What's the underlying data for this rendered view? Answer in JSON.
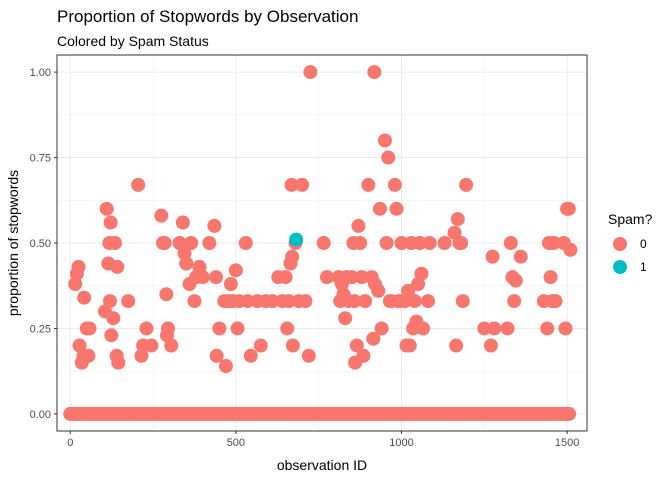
{
  "chart_data": {
    "type": "scatter",
    "title": "Proportion of Stopwords by Observation",
    "subtitle": "Colored by Spam Status",
    "xlabel": "observation ID",
    "ylabel": "proportion of stopwords",
    "xlim": [
      -40,
      1560
    ],
    "ylim": [
      -0.05,
      1.05
    ],
    "x_ticks": [
      0,
      500,
      1000,
      1500
    ],
    "y_ticks": [
      0.0,
      0.25,
      0.5,
      0.75,
      1.0
    ],
    "y_tick_labels": [
      "0.00",
      "0.25",
      "0.50",
      "0.75",
      "1.00"
    ],
    "grid": true,
    "legend": {
      "title": "Spam?",
      "position": "right",
      "entries": [
        {
          "label": "0",
          "color": "#F8766D"
        },
        {
          "label": "1",
          "color": "#00BFC4"
        }
      ]
    },
    "series": [
      {
        "name": "0",
        "color": "#F8766D",
        "zero_range": [
          0,
          1510,
          6
        ],
        "points": [
          [
            15,
            0.38
          ],
          [
            20,
            0.41
          ],
          [
            25,
            0.43
          ],
          [
            28,
            0.2
          ],
          [
            35,
            0.15
          ],
          [
            40,
            0.17
          ],
          [
            42,
            0.34
          ],
          [
            50,
            0.25
          ],
          [
            55,
            0.17
          ],
          [
            58,
            0.25
          ],
          [
            105,
            0.3
          ],
          [
            110,
            0.6
          ],
          [
            115,
            0.44
          ],
          [
            118,
            0.5
          ],
          [
            120,
            0.33
          ],
          [
            122,
            0.56
          ],
          [
            124,
            0.23
          ],
          [
            130,
            0.28
          ],
          [
            135,
            0.5
          ],
          [
            140,
            0.17
          ],
          [
            142,
            0.43
          ],
          [
            145,
            0.15
          ],
          [
            175,
            0.33
          ],
          [
            205,
            0.67
          ],
          [
            215,
            0.17
          ],
          [
            220,
            0.2
          ],
          [
            230,
            0.25
          ],
          [
            245,
            0.2
          ],
          [
            275,
            0.58
          ],
          [
            280,
            0.5
          ],
          [
            285,
            0.5
          ],
          [
            290,
            0.35
          ],
          [
            292,
            0.23
          ],
          [
            295,
            0.25
          ],
          [
            305,
            0.2
          ],
          [
            330,
            0.5
          ],
          [
            340,
            0.56
          ],
          [
            345,
            0.47
          ],
          [
            350,
            0.44
          ],
          [
            360,
            0.38
          ],
          [
            365,
            0.5
          ],
          [
            375,
            0.33
          ],
          [
            380,
            0.4
          ],
          [
            390,
            0.43
          ],
          [
            400,
            0.4
          ],
          [
            420,
            0.5
          ],
          [
            435,
            0.55
          ],
          [
            440,
            0.4
          ],
          [
            442,
            0.17
          ],
          [
            450,
            0.25
          ],
          [
            465,
            0.33
          ],
          [
            470,
            0.14
          ],
          [
            478,
            0.33
          ],
          [
            485,
            0.38
          ],
          [
            490,
            0.33
          ],
          [
            500,
            0.42
          ],
          [
            505,
            0.25
          ],
          [
            510,
            0.33
          ],
          [
            530,
            0.5
          ],
          [
            535,
            0.33
          ],
          [
            545,
            0.17
          ],
          [
            565,
            0.33
          ],
          [
            575,
            0.2
          ],
          [
            590,
            0.33
          ],
          [
            610,
            0.33
          ],
          [
            628,
            0.4
          ],
          [
            640,
            0.33
          ],
          [
            650,
            0.4
          ],
          [
            655,
            0.25
          ],
          [
            660,
            0.33
          ],
          [
            665,
            0.44
          ],
          [
            668,
            0.67
          ],
          [
            670,
            0.46
          ],
          [
            672,
            0.2
          ],
          [
            680,
            0.5
          ],
          [
            690,
            0.33
          ],
          [
            700,
            0.67
          ],
          [
            710,
            0.33
          ],
          [
            720,
            0.17
          ],
          [
            725,
            1.0
          ],
          [
            765,
            0.5
          ],
          [
            775,
            0.4
          ],
          [
            810,
            0.4
          ],
          [
            815,
            0.33
          ],
          [
            820,
            0.38
          ],
          [
            825,
            0.35
          ],
          [
            830,
            0.28
          ],
          [
            835,
            0.4
          ],
          [
            840,
            0.33
          ],
          [
            850,
            0.4
          ],
          [
            855,
            0.5
          ],
          [
            858,
            0.33
          ],
          [
            860,
            0.15
          ],
          [
            865,
            0.2
          ],
          [
            870,
            0.55
          ],
          [
            875,
            0.5
          ],
          [
            880,
            0.4
          ],
          [
            885,
            0.17
          ],
          [
            890,
            0.33
          ],
          [
            900,
            0.67
          ],
          [
            910,
            0.4
          ],
          [
            915,
            0.22
          ],
          [
            920,
            0.38
          ],
          [
            918,
            1.0
          ],
          [
            930,
            0.36
          ],
          [
            935,
            0.6
          ],
          [
            940,
            0.25
          ],
          [
            950,
            0.8
          ],
          [
            955,
            0.5
          ],
          [
            960,
            0.75
          ],
          [
            965,
            0.33
          ],
          [
            970,
            0.33
          ],
          [
            980,
            0.67
          ],
          [
            985,
            0.6
          ],
          [
            990,
            0.33
          ],
          [
            995,
            0.33
          ],
          [
            1000,
            0.5
          ],
          [
            1010,
            0.33
          ],
          [
            1015,
            0.2
          ],
          [
            1020,
            0.36
          ],
          [
            1025,
            0.2
          ],
          [
            1030,
            0.5
          ],
          [
            1035,
            0.25
          ],
          [
            1040,
            0.33
          ],
          [
            1045,
            0.27
          ],
          [
            1050,
            0.38
          ],
          [
            1055,
            0.5
          ],
          [
            1060,
            0.41
          ],
          [
            1065,
            0.25
          ],
          [
            1080,
            0.33
          ],
          [
            1085,
            0.5
          ],
          [
            1130,
            0.5
          ],
          [
            1160,
            0.53
          ],
          [
            1165,
            0.2
          ],
          [
            1170,
            0.57
          ],
          [
            1175,
            0.5
          ],
          [
            1180,
            0.5
          ],
          [
            1185,
            0.33
          ],
          [
            1195,
            0.67
          ],
          [
            1250,
            0.25
          ],
          [
            1270,
            0.2
          ],
          [
            1275,
            0.46
          ],
          [
            1280,
            0.25
          ],
          [
            1320,
            0.25
          ],
          [
            1330,
            0.5
          ],
          [
            1335,
            0.4
          ],
          [
            1340,
            0.33
          ],
          [
            1345,
            0.39
          ],
          [
            1360,
            0.46
          ],
          [
            1430,
            0.33
          ],
          [
            1440,
            0.25
          ],
          [
            1445,
            0.5
          ],
          [
            1450,
            0.4
          ],
          [
            1455,
            0.33
          ],
          [
            1460,
            0.5
          ],
          [
            1465,
            0.33
          ],
          [
            1490,
            0.5
          ],
          [
            1495,
            0.25
          ],
          [
            1500,
            0.6
          ],
          [
            1505,
            0.6
          ],
          [
            1510,
            0.48
          ]
        ]
      },
      {
        "name": "1",
        "color": "#00BFC4",
        "points": [
          [
            682,
            0.51
          ]
        ]
      }
    ]
  }
}
